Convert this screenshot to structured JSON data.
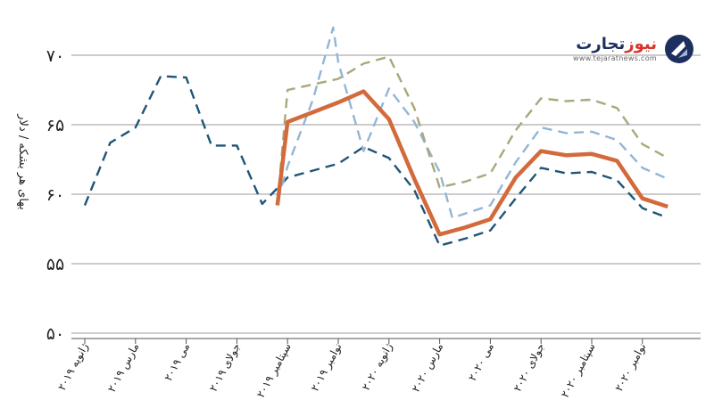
{
  "logo": {
    "name_part_a": "نیوز",
    "name_part_b": "تجارت",
    "url": "www.tejaratnews.com"
  },
  "chart_data": {
    "type": "line",
    "title": "",
    "ylabel": "بهای هر بشکه / دلار",
    "xlabel": "",
    "ylim": [
      50,
      73
    ],
    "yticks": [
      50,
      55,
      60,
      65,
      70
    ],
    "ytick_labels": [
      "۵۰",
      "۵۵",
      "۶۰",
      "۶۵",
      "۷۰"
    ],
    "xticks": [
      {
        "x": 0,
        "label": "ژانویه ۲۰۱۹"
      },
      {
        "x": 2,
        "label": "مارس ۲۰۱۹"
      },
      {
        "x": 4,
        "label": "می ۲۰۱۹"
      },
      {
        "x": 6,
        "label": "جولای ۲۰۱۹"
      },
      {
        "x": 8,
        "label": "سپتامبر ۲۰۱۹"
      },
      {
        "x": 10,
        "label": "نوامبر ۲۰۱۹"
      },
      {
        "x": 12,
        "label": "ژانویه ۲۰۲۰"
      },
      {
        "x": 14,
        "label": "مارس ۲۰۲۰"
      },
      {
        "x": 16,
        "label": "می ۲۰۲۰"
      },
      {
        "x": 18,
        "label": "جولای ۲۰۲۰"
      },
      {
        "x": 20,
        "label": "سپتامبر ۲۰۲۰"
      },
      {
        "x": 22,
        "label": "نوامبر ۲۰۲۰"
      }
    ],
    "xlim": [
      0,
      24.2
    ],
    "grid": true,
    "series": [
      {
        "color": "#1f5577",
        "style": "dashed",
        "points": [
          [
            0,
            59.2
          ],
          [
            1,
            63.7
          ],
          [
            2,
            64.8
          ],
          [
            3,
            68.5
          ],
          [
            4,
            68.4
          ],
          [
            5,
            63.5
          ],
          [
            6,
            63.5
          ],
          [
            7,
            59.3
          ],
          [
            8,
            61.2
          ],
          [
            9,
            61.7
          ],
          [
            10,
            62.2
          ],
          [
            11,
            63.4
          ],
          [
            12,
            62.6
          ],
          [
            13,
            60.3
          ],
          [
            14,
            56.3
          ],
          [
            15,
            56.8
          ],
          [
            16,
            57.4
          ],
          [
            17,
            59.7
          ],
          [
            18,
            61.9
          ],
          [
            19,
            61.5
          ],
          [
            20,
            61.6
          ],
          [
            21,
            61.0
          ],
          [
            22,
            59.0
          ],
          [
            23,
            58.3
          ]
        ]
      },
      {
        "color": "#93b6d4",
        "style": "dashed",
        "points": [
          [
            7.6,
            59.5
          ],
          [
            8,
            62.0
          ],
          [
            9,
            66.8
          ],
          [
            9.8,
            72.0
          ],
          [
            10,
            69.5
          ],
          [
            11,
            63.1
          ],
          [
            12,
            67.6
          ],
          [
            13,
            65.2
          ],
          [
            14,
            61.6
          ],
          [
            14.5,
            58.3
          ],
          [
            15,
            58.6
          ],
          [
            16,
            59.2
          ],
          [
            17,
            62.3
          ],
          [
            18,
            64.8
          ],
          [
            19,
            64.4
          ],
          [
            20,
            64.5
          ],
          [
            21,
            63.9
          ],
          [
            22,
            61.9
          ],
          [
            23,
            61.1
          ]
        ]
      },
      {
        "color": "#a8a87c",
        "style": "dashed",
        "points": [
          [
            7.6,
            59.3
          ],
          [
            8,
            67.5
          ],
          [
            9,
            67.9
          ],
          [
            10,
            68.3
          ],
          [
            11,
            69.4
          ],
          [
            12,
            69.9
          ],
          [
            13,
            66.2
          ],
          [
            14,
            60.5
          ],
          [
            15,
            60.9
          ],
          [
            16,
            61.5
          ],
          [
            17,
            64.6
          ],
          [
            18,
            66.9
          ],
          [
            19,
            66.7
          ],
          [
            20,
            66.8
          ],
          [
            21,
            66.2
          ],
          [
            22,
            63.6
          ],
          [
            23,
            62.6
          ]
        ]
      },
      {
        "color": "#d26a3c",
        "style": "solid",
        "points": [
          [
            7.6,
            59.2
          ],
          [
            8,
            65.2
          ],
          [
            9,
            65.9
          ],
          [
            10,
            66.6
          ],
          [
            11,
            67.4
          ],
          [
            12,
            65.4
          ],
          [
            13,
            61.1
          ],
          [
            14,
            57.1
          ],
          [
            15,
            57.6
          ],
          [
            16,
            58.2
          ],
          [
            17,
            61.2
          ],
          [
            18,
            63.1
          ],
          [
            19,
            62.8
          ],
          [
            20,
            62.9
          ],
          [
            21,
            62.4
          ],
          [
            22,
            59.7
          ],
          [
            23,
            59.1
          ]
        ]
      }
    ]
  }
}
